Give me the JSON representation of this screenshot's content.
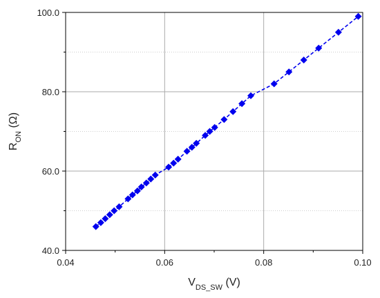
{
  "chart_data": {
    "type": "scatter",
    "title": "",
    "xlabel": {
      "main": "V",
      "sub": "DS_SW",
      "unit": " (V)"
    },
    "ylabel": {
      "main": "R",
      "sub": "ON",
      "unit": " (Ω)"
    },
    "xlim": [
      0.04,
      0.1
    ],
    "ylim": [
      40.0,
      100.0
    ],
    "x_ticks": [
      0.04,
      0.06,
      0.08,
      0.1
    ],
    "x_tick_labels": [
      "0.04",
      "0.06",
      "0.08",
      "0.10"
    ],
    "y_ticks": [
      40.0,
      60.0,
      80.0,
      100.0
    ],
    "y_tick_labels": [
      "40.0",
      "60.0",
      "80.0",
      "100.0"
    ],
    "minor_y_grid": [
      50.0,
      70.0,
      90.0
    ],
    "grid": true,
    "marker": "diamond",
    "marker_color": "#0000ee",
    "line_color": "#0000ee",
    "points": [
      {
        "x": 0.0461,
        "y": 46
      },
      {
        "x": 0.0471,
        "y": 47
      },
      {
        "x": 0.048,
        "y": 48
      },
      {
        "x": 0.0489,
        "y": 49
      },
      {
        "x": 0.0498,
        "y": 50
      },
      {
        "x": 0.0508,
        "y": 51
      },
      {
        "x": 0.0526,
        "y": 53
      },
      {
        "x": 0.0535,
        "y": 54
      },
      {
        "x": 0.0545,
        "y": 55
      },
      {
        "x": 0.0553,
        "y": 56
      },
      {
        "x": 0.0563,
        "y": 57
      },
      {
        "x": 0.0572,
        "y": 58
      },
      {
        "x": 0.0581,
        "y": 59
      },
      {
        "x": 0.0608,
        "y": 61
      },
      {
        "x": 0.0618,
        "y": 62
      },
      {
        "x": 0.0627,
        "y": 63
      },
      {
        "x": 0.0645,
        "y": 65
      },
      {
        "x": 0.0655,
        "y": 66
      },
      {
        "x": 0.0664,
        "y": 67
      },
      {
        "x": 0.0682,
        "y": 69
      },
      {
        "x": 0.0691,
        "y": 70
      },
      {
        "x": 0.0701,
        "y": 71
      },
      {
        "x": 0.072,
        "y": 73
      },
      {
        "x": 0.0738,
        "y": 75
      },
      {
        "x": 0.0756,
        "y": 77
      },
      {
        "x": 0.0774,
        "y": 79
      },
      {
        "x": 0.0821,
        "y": 82
      },
      {
        "x": 0.0851,
        "y": 85
      },
      {
        "x": 0.0881,
        "y": 88
      },
      {
        "x": 0.0911,
        "y": 91
      },
      {
        "x": 0.0951,
        "y": 95
      },
      {
        "x": 0.0991,
        "y": 99
      }
    ]
  }
}
